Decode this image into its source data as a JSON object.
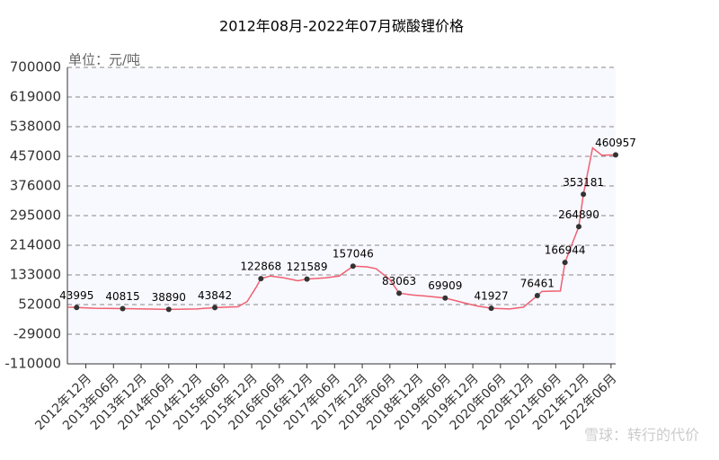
{
  "chart_data": {
    "type": "line",
    "title": "2012年08月-2022年07月碳酸锂价格",
    "unit_label": "单位：元/吨",
    "watermark": "雪球：转行的代价",
    "categories": [
      "2012年12月",
      "2013年06月",
      "2013年12月",
      "2014年06月",
      "2014年12月",
      "2015年06月",
      "2015年12月",
      "2016年06月",
      "2016年12月",
      "2017年06月",
      "2017年12月",
      "2018年06月",
      "2018年12月",
      "2019年06月",
      "2019年12月",
      "2020年06月",
      "2020年12月",
      "2021年06月",
      "2021年12月",
      "2022年06月"
    ],
    "ylim": [
      -110000,
      700000
    ],
    "yticks": [
      -110000,
      -29000,
      52000,
      133000,
      214000,
      295000,
      376000,
      457000,
      538000,
      619000,
      700000
    ],
    "grid": true,
    "series": [
      {
        "color": "#f06070",
        "x": [
          "2012年08月",
          "2012年10月",
          "2013年02月",
          "2013年08月",
          "2014年01月",
          "2014年06月",
          "2014年12月",
          "2015年04月",
          "2015年09月",
          "2015年11月",
          "2016年01月",
          "2016年02月",
          "2016年04月",
          "2016年07月",
          "2016年10月",
          "2016年12月",
          "2017年04月",
          "2017年07月",
          "2017年10月",
          "2018年01月",
          "2018年03月",
          "2018年06月",
          "2018年08月",
          "2018年11月",
          "2019年02月",
          "2019年06月",
          "2019年10月",
          "2020年01月",
          "2020年04月",
          "2020年08月",
          "2020年11月",
          "2021年02月",
          "2021年03月",
          "2021年07月",
          "2021年08月",
          "2021年11月",
          "2021年12月",
          "2022年02月",
          "2022年04月",
          "2022年07月"
        ],
        "values": [
          45000,
          43995,
          42000,
          40815,
          40000,
          38890,
          40000,
          43842,
          46000,
          60000,
          100000,
          122868,
          130000,
          125000,
          117000,
          121589,
          125000,
          130000,
          157046,
          155000,
          150000,
          120000,
          83063,
          78000,
          75000,
          69909,
          57000,
          48000,
          41927,
          40000,
          45000,
          76461,
          88000,
          89000,
          166944,
          264890,
          353181,
          480000,
          460000,
          460957
        ]
      },
      {
        "color": "#333333",
        "x": [
          "2012年10月",
          "2013年08月",
          "2014年06月",
          "2015年04月",
          "2016年02月",
          "2016年12月",
          "2017年10月",
          "2018年08月",
          "2019年06月",
          "2020年04月",
          "2021年02月",
          "2021年08月",
          "2021年11月",
          "2021年12月",
          "2022年07月"
        ],
        "values": [
          43995,
          40815,
          38890,
          43842,
          122868,
          121589,
          157046,
          83063,
          69909,
          41927,
          76461,
          166944,
          264890,
          353181,
          460957
        ]
      }
    ]
  }
}
